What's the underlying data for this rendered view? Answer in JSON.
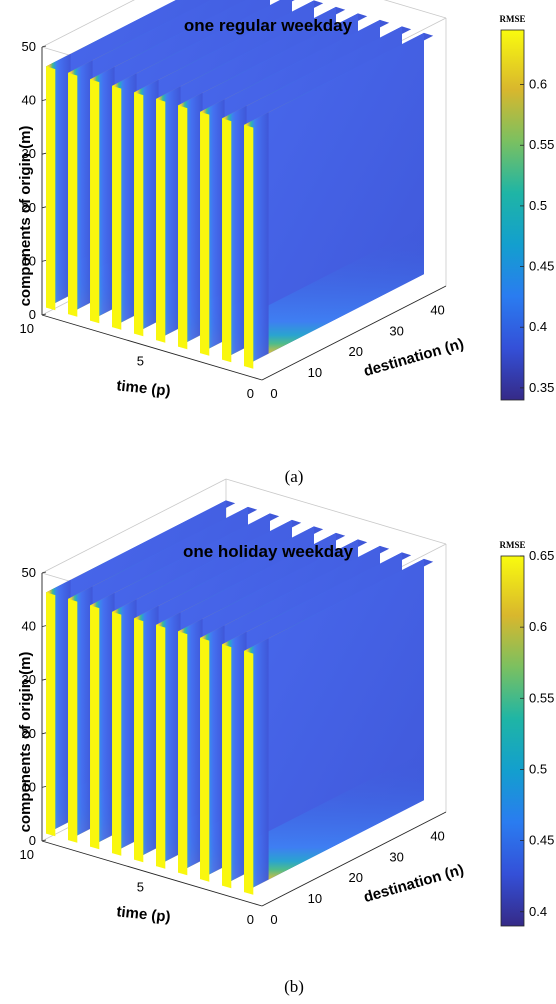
{
  "chart_data": [
    {
      "type": "3d-slices",
      "title": "one regular weekday",
      "caption": "(a)",
      "xlabel": "destination (n)",
      "ylabel": "time (p)",
      "zlabel": "components of origin (m)",
      "xlim": [
        0,
        45
      ],
      "ylim": [
        0,
        10
      ],
      "zlim": [
        0,
        50
      ],
      "x_ticks": [
        "0",
        "10",
        "20",
        "30",
        "40"
      ],
      "y_ticks": [
        "0",
        "5",
        "10"
      ],
      "z_ticks": [
        "0",
        "10",
        "20",
        "30",
        "40",
        "50"
      ],
      "slices_time": [
        1,
        2,
        3,
        4,
        5,
        6,
        7,
        8,
        9,
        10
      ],
      "data_extent": {
        "n": [
          1,
          45
        ],
        "m": [
          1,
          46
        ]
      },
      "colorbar": {
        "title": "RMSE",
        "range": [
          0.34,
          0.645
        ],
        "ticks": [
          "0.35",
          "0.4",
          "0.45",
          "0.5",
          "0.55",
          "0.6"
        ],
        "colormap": "parula"
      }
    },
    {
      "type": "3d-slices",
      "title": "one holiday weekday",
      "caption": "(b)",
      "xlabel": "destination (n)",
      "ylabel": "time (p)",
      "zlabel": "components of origin (m)",
      "xlim": [
        0,
        45
      ],
      "ylim": [
        0,
        10
      ],
      "zlim": [
        0,
        50
      ],
      "x_ticks": [
        "0",
        "10",
        "20",
        "30",
        "40"
      ],
      "y_ticks": [
        "0",
        "5",
        "10"
      ],
      "z_ticks": [
        "0",
        "10",
        "20",
        "30",
        "40",
        "50"
      ],
      "slices_time": [
        1,
        2,
        3,
        4,
        5,
        6,
        7,
        8,
        9,
        10
      ],
      "data_extent": {
        "n": [
          1,
          45
        ],
        "m": [
          1,
          46
        ]
      },
      "colorbar": {
        "title": "RMSE",
        "range": [
          0.39,
          0.65
        ],
        "ticks": [
          "0.4",
          "0.45",
          "0.5",
          "0.55",
          "0.6",
          "0.65"
        ],
        "colormap": "parula"
      }
    }
  ]
}
